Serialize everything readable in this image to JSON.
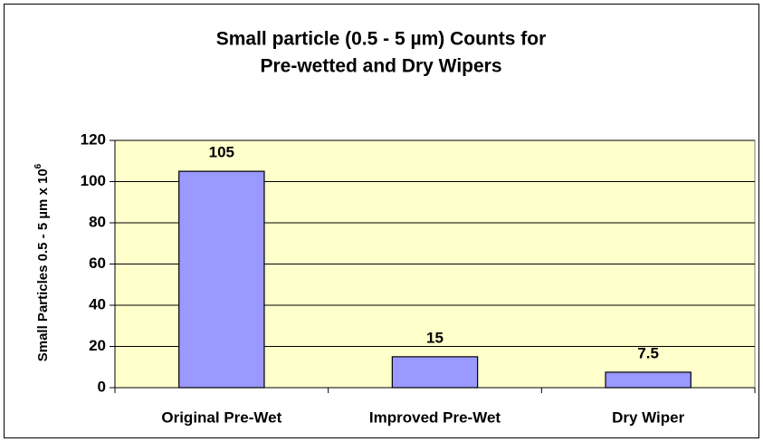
{
  "chart_data": {
    "type": "bar",
    "title": [
      "Small particle (0.5 - 5 µm) Counts for",
      "Pre-wetted and Dry Wipers"
    ],
    "y_label": "Small Particles 0.5 - 5 µm x 10",
    "y_label_superscript": "6",
    "categories": [
      "Original Pre-Wet",
      "Improved Pre-Wet",
      "Dry Wiper"
    ],
    "values": [
      105,
      15,
      7.5
    ],
    "color": "#9999ff",
    "plot_background": "#ffffcc",
    "ylim": [
      0,
      120
    ],
    "yticks": [
      0,
      20,
      40,
      60,
      80,
      100,
      120
    ],
    "grid": true
  }
}
